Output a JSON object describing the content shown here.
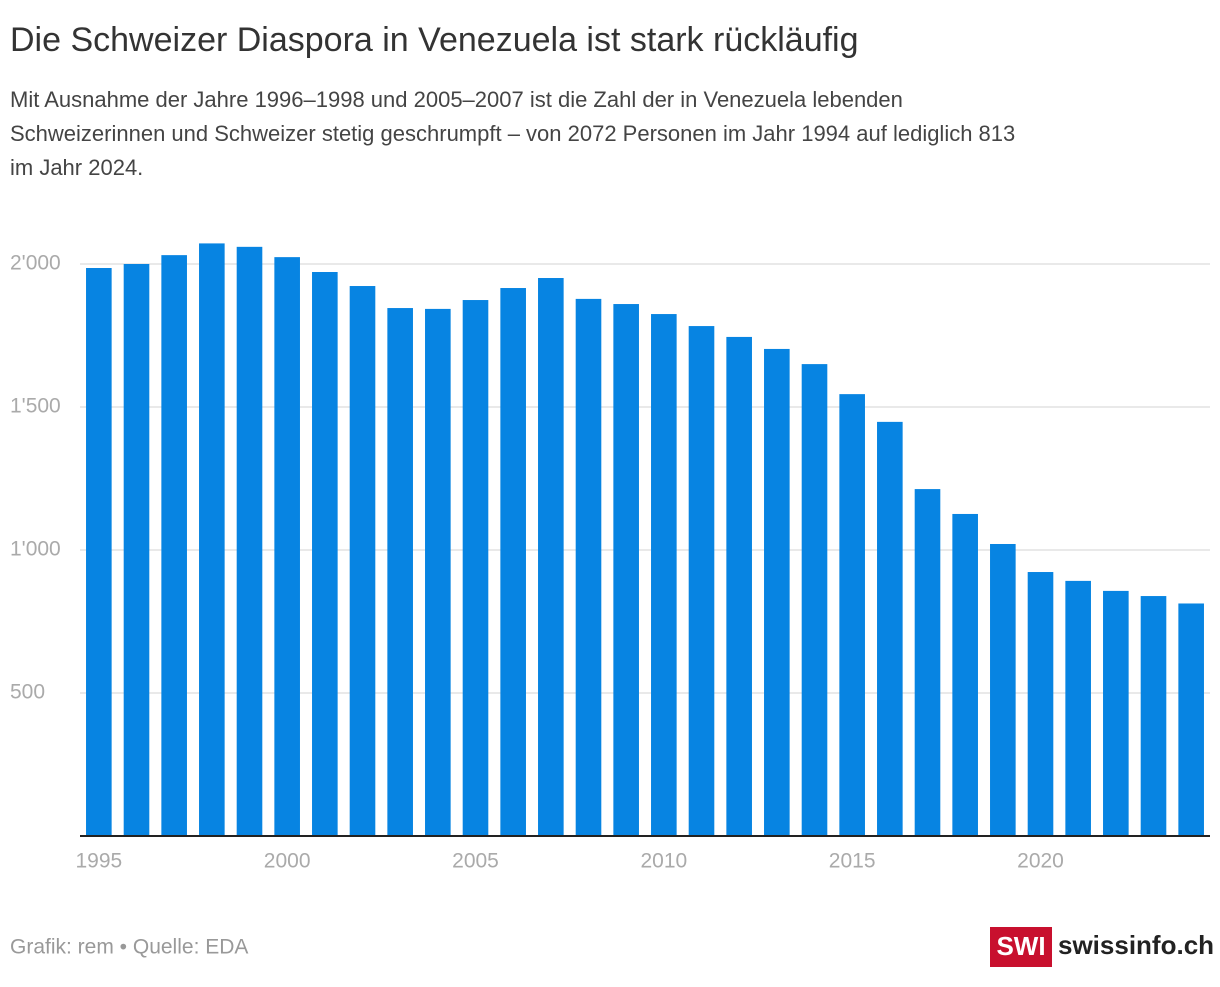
{
  "chart_data": {
    "type": "bar",
    "title": "Die Schweizer Diaspora in Venezuela ist stark rückläufig",
    "subtitle": [
      "Mit Ausnahme der Jahre 1996–1998 und 2005–2007 ist die Zahl der in Venezuela lebenden",
      "Schweizerinnen und Schweizer stetig geschrumpft – von 2072 Personen im Jahr 1994 auf lediglich 813",
      "im Jahr 2024."
    ],
    "x": [
      1995,
      1996,
      1997,
      1998,
      1999,
      2000,
      2001,
      2002,
      2003,
      2004,
      2005,
      2006,
      2007,
      2008,
      2009,
      2010,
      2011,
      2012,
      2013,
      2014,
      2015,
      2016,
      2017,
      2018,
      2019,
      2020,
      2021,
      2022,
      2023,
      2024
    ],
    "values": [
      1986,
      2000,
      2031,
      2072,
      2060,
      2024,
      1972,
      1923,
      1846,
      1843,
      1874,
      1916,
      1951,
      1878,
      1860,
      1825,
      1783,
      1745,
      1703,
      1650,
      1545,
      1448,
      1213,
      1126,
      1021,
      923,
      892,
      857,
      839,
      813
    ],
    "color": "#0784e2",
    "xlim": [
      1994.5,
      2024.5
    ],
    "xticks": [
      1995,
      2000,
      2005,
      2010,
      2015,
      2020
    ],
    "ylim": [
      0,
      2100
    ],
    "yticks": [
      500,
      {
        "value": 1000,
        "label": "1'000"
      },
      {
        "value": 1500,
        "label": "1'500"
      },
      {
        "value": 2000,
        "label": "2'000"
      }
    ],
    "grid": true,
    "source": "Grafik: rem • Quelle: EDA",
    "logo": {
      "badge": "SWI",
      "site": "swissinfo.ch"
    }
  }
}
